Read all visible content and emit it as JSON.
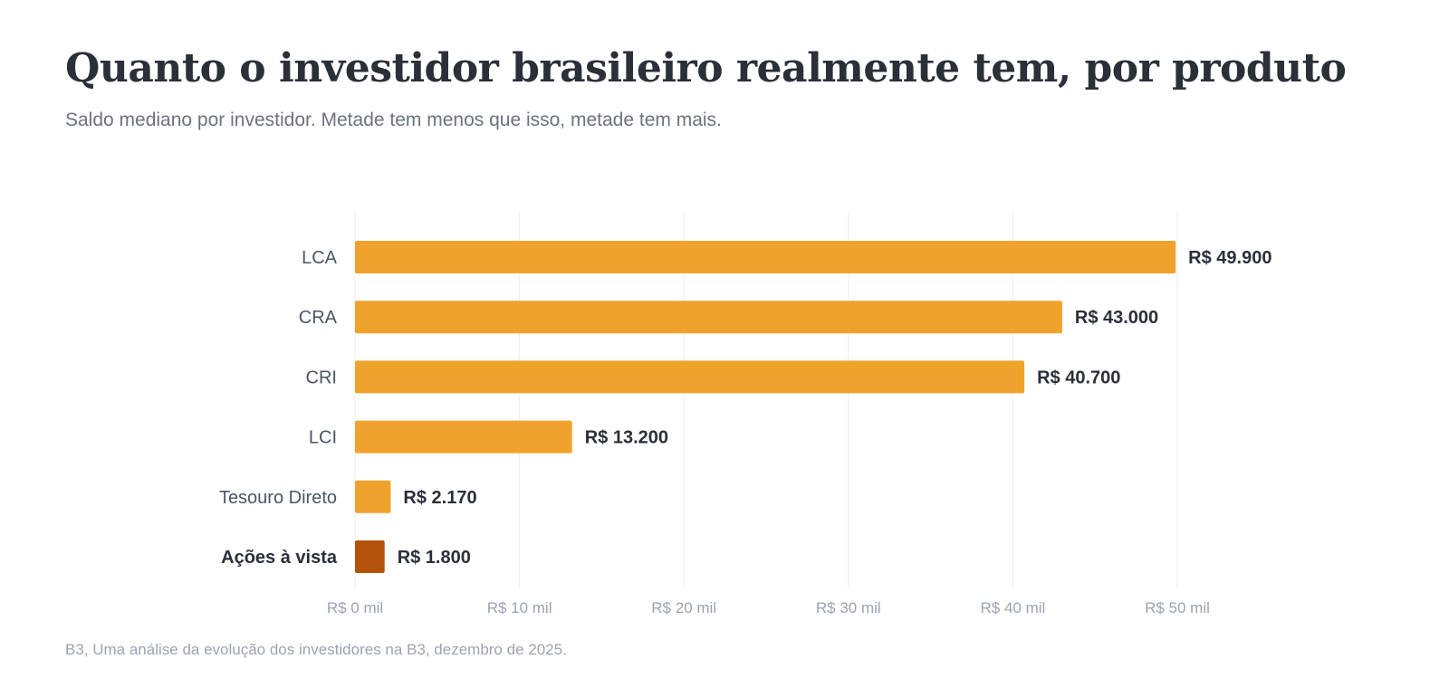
{
  "title": "Quanto o investidor brasileiro realmente tem, por produto",
  "subtitle": "Saldo mediano por investidor. Metade tem menos que isso, metade tem mais.",
  "source": "B3, Uma análise da evolução dos investidores na B3, dezembro de 2025.",
  "colors": {
    "bar": "#f0a32c",
    "highlight": "#b3530b",
    "grid": "#ececec"
  },
  "chart_data": {
    "type": "bar",
    "orientation": "horizontal",
    "categories": [
      "LCA",
      "CRA",
      "CRI",
      "LCI",
      "Tesouro Direto",
      "Ações à vista"
    ],
    "values": [
      49900,
      43000,
      40700,
      13200,
      2170,
      1800
    ],
    "value_labels": [
      "R$ 49.900",
      "R$ 43.000",
      "R$ 40.700",
      "R$ 13.200",
      "R$ 2.170",
      "R$ 1.800"
    ],
    "highlight_category": "Ações à vista",
    "xlim": [
      0,
      50000
    ],
    "xticks": [
      0,
      10000,
      20000,
      30000,
      40000,
      50000
    ],
    "xtick_labels": [
      "R$ 0 mil",
      "R$ 10 mil",
      "R$ 20 mil",
      "R$ 30 mil",
      "R$ 40 mil",
      "R$ 50 mil"
    ],
    "grid": true
  }
}
